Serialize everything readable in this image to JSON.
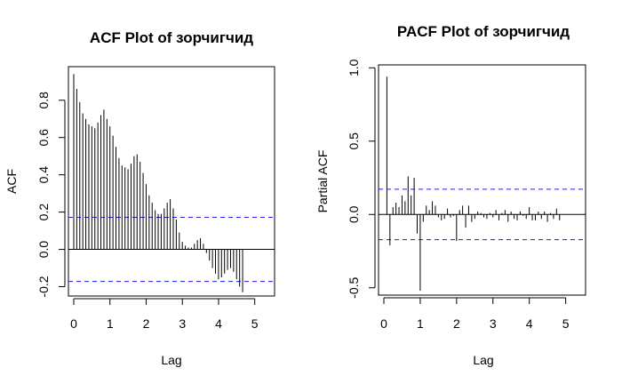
{
  "chart_data": [
    {
      "type": "bar",
      "title": "ACF Plot of зорчигчид",
      "xlabel": "Lag",
      "ylabel": "ACF",
      "xlim": [
        0,
        5.4
      ],
      "ylim": [
        -0.25,
        0.98
      ],
      "x_ticks": [
        0,
        1,
        2,
        3,
        4,
        5
      ],
      "y_ticks": [
        -0.2,
        0.0,
        0.2,
        0.4,
        0.6,
        0.8
      ],
      "y_tick_labels": [
        "-0.2",
        "0.0",
        "0.2",
        "0.4",
        "0.6",
        "0.8"
      ],
      "x_tick_labels": [
        "0",
        "1",
        "2",
        "3",
        "4",
        "5"
      ],
      "ci": [
        0.172,
        -0.172
      ],
      "ci_color": "#1f1fdd",
      "lag_step": 0.0833,
      "values": [
        0.94,
        0.86,
        0.79,
        0.73,
        0.7,
        0.67,
        0.66,
        0.65,
        0.68,
        0.72,
        0.75,
        0.7,
        0.66,
        0.61,
        0.55,
        0.49,
        0.45,
        0.44,
        0.43,
        0.46,
        0.5,
        0.51,
        0.47,
        0.41,
        0.35,
        0.29,
        0.25,
        0.21,
        0.19,
        0.19,
        0.22,
        0.25,
        0.27,
        0.22,
        0.16,
        0.09,
        0.04,
        0.02,
        0.01,
        0.01,
        0.03,
        0.05,
        0.06,
        0.03,
        -0.02,
        -0.06,
        -0.1,
        -0.13,
        -0.16,
        -0.15,
        -0.13,
        -0.11,
        -0.1,
        -0.12,
        -0.16,
        -0.2,
        -0.23
      ]
    },
    {
      "type": "bar",
      "title": "PACF Plot of зорчигчид",
      "xlabel": "Lag",
      "ylabel": "Partial ACF",
      "xlim": [
        0,
        5.4
      ],
      "ylim": [
        -0.55,
        1.02
      ],
      "x_ticks": [
        0,
        1,
        2,
        3,
        4,
        5
      ],
      "y_ticks": [
        -0.5,
        0.0,
        0.5,
        1.0
      ],
      "y_tick_labels": [
        "-0.5",
        "0.0",
        "0.5",
        "1.0"
      ],
      "x_tick_labels": [
        "0",
        "1",
        "2",
        "3",
        "4",
        "5"
      ],
      "ci": [
        0.172,
        -0.172
      ],
      "ci_color": "#1f1fdd",
      "lag_step": 0.0833,
      "values": [
        0.94,
        -0.21,
        0.05,
        0.08,
        0.05,
        0.13,
        0.09,
        0.26,
        0.13,
        0.25,
        -0.13,
        -0.52,
        -0.05,
        0.06,
        0.03,
        0.09,
        0.06,
        -0.02,
        -0.04,
        -0.03,
        0.04,
        -0.02,
        -0.01,
        -0.18,
        0.03,
        0.06,
        -0.09,
        0.06,
        -0.05,
        -0.03,
        0.02,
        0.01,
        -0.02,
        -0.03,
        0.01,
        -0.02,
        0.03,
        -0.04,
        0.01,
        0.03,
        -0.05,
        0.02,
        -0.03,
        -0.04,
        0.02,
        -0.01,
        -0.03,
        0.05,
        -0.04,
        -0.04,
        0.02,
        -0.03,
        0.02,
        -0.05,
        0.01,
        -0.03,
        0.04,
        -0.04
      ]
    }
  ]
}
